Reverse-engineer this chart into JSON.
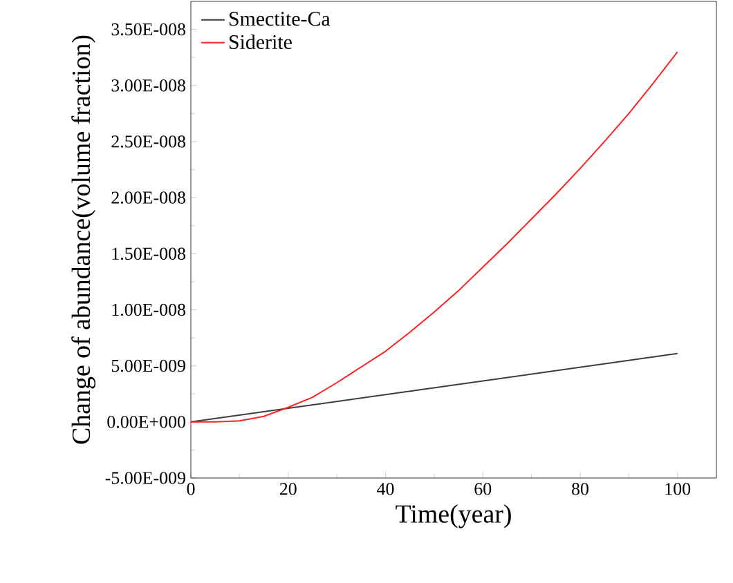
{
  "chart_data": {
    "type": "line",
    "xlabel": "Time(year)",
    "ylabel": "Change of abundance(volume fraction)",
    "xlim": [
      0,
      108
    ],
    "ylim": [
      -5e-09,
      3.75e-08
    ],
    "xticks": [
      0,
      20,
      40,
      60,
      80,
      100
    ],
    "yticks": [
      {
        "value": -5e-09,
        "label": "-5.00E-009"
      },
      {
        "value": 0,
        "label": "0.00E+000"
      },
      {
        "value": 5e-09,
        "label": "5.00E-009"
      },
      {
        "value": 1e-08,
        "label": "1.00E-008"
      },
      {
        "value": 1.5e-08,
        "label": "1.50E-008"
      },
      {
        "value": 2e-08,
        "label": "2.00E-008"
      },
      {
        "value": 2.5e-08,
        "label": "2.50E-008"
      },
      {
        "value": 3e-08,
        "label": "3.00E-008"
      },
      {
        "value": 3.5e-08,
        "label": "3.50E-008"
      }
    ],
    "grid": false,
    "legend": "top left",
    "marker": "none",
    "line_style": "solid",
    "series": [
      {
        "name": "Smectite-Ca",
        "color": "#3c3c3c",
        "x": [
          0,
          100
        ],
        "values": [
          0,
          6.1e-09
        ]
      },
      {
        "name": "Siderite",
        "color": "#ff2020",
        "x": [
          0,
          5,
          10,
          15,
          20,
          25,
          30,
          35,
          40,
          45,
          50,
          55,
          60,
          65,
          70,
          75,
          80,
          85,
          90,
          95,
          100
        ],
        "values": [
          0,
          0,
          1e-10,
          5e-10,
          1.3e-09,
          2.2e-09,
          3.5e-09,
          4.9e-09,
          6.3e-09,
          8e-09,
          9.8e-09,
          1.17e-08,
          1.38e-08,
          1.59e-08,
          1.81e-08,
          2.03e-08,
          2.26e-08,
          2.5e-08,
          2.75e-08,
          3.02e-08,
          3.3e-08
        ]
      }
    ]
  }
}
